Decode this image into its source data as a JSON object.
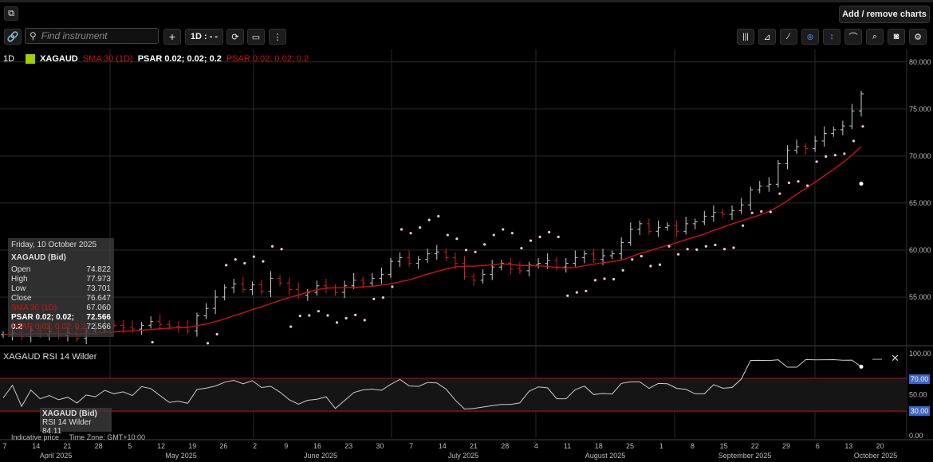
{
  "header": {
    "add_remove_label": "Add / remove charts"
  },
  "toolbar": {
    "search_placeholder": "Find instrument",
    "interval_label": "1D : - -",
    "right_icons": [
      "bars-icon",
      "chart-type-icon",
      "draw-line-icon",
      "crosshair-icon",
      "vertical-cursor-icon",
      "indicator-icon",
      "zoom-icon",
      "camera-icon",
      "gear-icon"
    ]
  },
  "legend": {
    "interval": "1D",
    "symbol": "XAGAUD",
    "sma": "SMA 30 (1D)",
    "psar1": "PSAR 0.02; 0.02; 0.2",
    "psar2": "PSAR 0.02; 0.02; 0.2"
  },
  "tooltip": {
    "date": "Friday, 10 October 2025",
    "instrument": "XAGAUD (Bid)",
    "open_label": "Open",
    "open": "74.822",
    "high_label": "High",
    "high": "77.973",
    "low_label": "Low",
    "low": "73.701",
    "close_label": "Close",
    "close": "76.647",
    "sma_label": "SMA 30 (1D)",
    "sma": "67.060",
    "psar1_label": "PSAR 0.02; 0.02; 0.2",
    "psar1": "72.566",
    "psar2_label": "PSAR 0.02; 0.02; 0.2",
    "psar2": "72.566"
  },
  "rsi_panel": {
    "title": "XAGAUD  RSI 14 Wilder",
    "tip_title": "XAGAUD (Bid)",
    "tip_value": "RSI 14 Wilder  84.11",
    "badge_upper": "70.00",
    "badge_lower": "30.00"
  },
  "footer": {
    "indicative": "Indicative price",
    "timezone": "Time Zone: GMT+10:00"
  },
  "colors": {
    "sma": "#d01010",
    "up": "#cccccc",
    "down": "#cc2222",
    "psar": "#f0c8c8",
    "rsi_band": "#c01010",
    "badge": "#3a64c8"
  },
  "chart_data": {
    "type": "ohlc",
    "title": "XAGAUD",
    "y_ticks": [
      55.0,
      60.0,
      65.0,
      70.0,
      75.0,
      80.0
    ],
    "y_tick_labels": [
      "55.000",
      "60.000",
      "65.000",
      "70.000",
      "75.000",
      "80.000"
    ],
    "ylim": [
      50.0,
      81.0
    ],
    "x_day_ticks": [
      "7",
      "14",
      "21",
      "28",
      "5",
      "12",
      "19",
      "26",
      "2",
      "9",
      "16",
      "23",
      "30",
      "7",
      "14",
      "21",
      "28",
      "4",
      "11",
      "18",
      "25",
      "1",
      "8",
      "15",
      "22",
      "29",
      "6",
      "13",
      "20"
    ],
    "x_month_labels": [
      "April 2025",
      "May 2025",
      "June 2025",
      "July 2025",
      "August 2025",
      "September 2025",
      "October 2025"
    ],
    "close_series": [
      51.0,
      51.2,
      50.8,
      51.5,
      51.0,
      51.3,
      50.9,
      51.2,
      50.6,
      51.4,
      51.8,
      52.2,
      52.0,
      51.8,
      51.6,
      52.0,
      52.4,
      52.1,
      51.9,
      51.8,
      51.4,
      53.0,
      53.8,
      55.0,
      56.0,
      56.4,
      55.8,
      56.3,
      55.6,
      57.0,
      56.5,
      55.8,
      55.2,
      55.5,
      56.2,
      56.0,
      55.5,
      56.2,
      56.8,
      56.5,
      57.0,
      57.4,
      58.8,
      59.2,
      58.6,
      59.0,
      59.6,
      59.8,
      59.2,
      58.6,
      57.2,
      56.8,
      57.4,
      58.2,
      58.6,
      58.0,
      57.8,
      58.4,
      58.6,
      58.9,
      58.2,
      58.6,
      59.2,
      59.6,
      59.0,
      59.4,
      59.6,
      60.8,
      62.2,
      62.8,
      62.0,
      62.4,
      62.6,
      62.0,
      62.8,
      63.0,
      63.6,
      64.0,
      63.8,
      64.2,
      64.8,
      66.4,
      66.8,
      67.0,
      69.2,
      70.6,
      71.0,
      70.8,
      71.6,
      72.4,
      72.8,
      73.2,
      74.8,
      76.6
    ],
    "sma30_start": 51.6,
    "sma30_end": 67.06,
    "rsi": {
      "values_last": 84.11,
      "ylim": [
        0,
        100
      ],
      "bands": [
        30,
        70
      ],
      "ticks": [
        "100.00",
        "70.00",
        "50.00",
        "30.00",
        "0.00"
      ]
    }
  }
}
